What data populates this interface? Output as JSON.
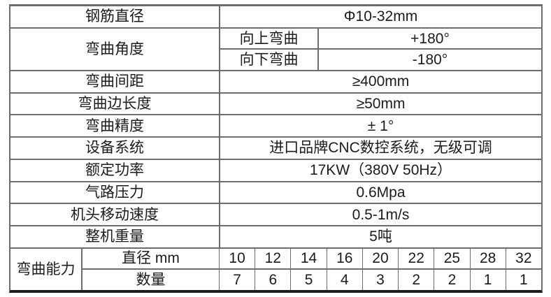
{
  "colors": {
    "background": "#ffffff",
    "border": "#6d6d6d",
    "border_heavy": "#1d1d1d",
    "text": "#1b1b1b"
  },
  "table": {
    "row_rebar_diameter": {
      "label": "钢筋直径",
      "value": "Φ10-32mm"
    },
    "row_bend_angle": {
      "label": "弯曲角度",
      "up": {
        "label": "向上弯曲",
        "value": "+180°"
      },
      "down": {
        "label": "向下弯曲",
        "value": "-180°"
      }
    },
    "row_bend_spacing": {
      "label": "弯曲间距",
      "value": "≥400mm"
    },
    "row_bend_side_len": {
      "label": "弯曲边长度",
      "value": "≥50mm"
    },
    "row_bend_precision": {
      "label": "弯曲精度",
      "value": "± 1°"
    },
    "row_system": {
      "label": "设备系统",
      "value": "进口品牌CNC数控系统，无级可调"
    },
    "row_rated_power": {
      "label": "额定功率",
      "value": "17KW（380V 50Hz）"
    },
    "row_air_pressure": {
      "label": "气路压力",
      "value": "0.6Mpa"
    },
    "row_head_speed": {
      "label": "机头移动速度",
      "value": "0.5-1m/s"
    },
    "row_total_weight": {
      "label": "整机重量",
      "value": "5吨"
    },
    "row_bend_capacity": {
      "label": "弯曲能力",
      "diameter_row_label": "直径 mm",
      "diameters": [
        "10",
        "12",
        "14",
        "16",
        "20",
        "22",
        "25",
        "28",
        "32"
      ],
      "quantity_row_label": "数量",
      "quantities": [
        "7",
        "6",
        "5",
        "4",
        "3",
        "2",
        "2",
        "1",
        "1"
      ]
    }
  }
}
